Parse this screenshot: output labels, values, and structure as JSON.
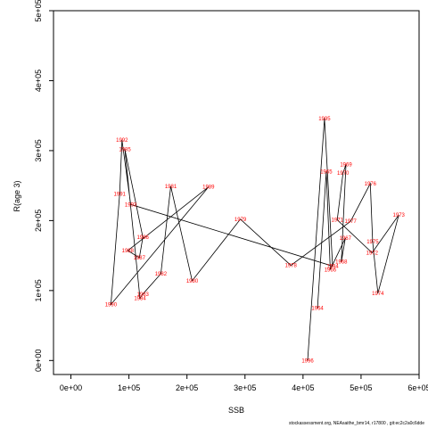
{
  "chart_data": {
    "type": "scatter",
    "connected": true,
    "xlabel": "SSB",
    "ylabel": "R(age 3)",
    "xlim": [
      -30000,
      600000
    ],
    "ylim": [
      -20000,
      500000
    ],
    "xticks": [
      0,
      100000,
      200000,
      300000,
      400000,
      500000,
      600000
    ],
    "xtick_labels": [
      "0e+00",
      "1e+05",
      "2e+05",
      "3e+05",
      "4e+05",
      "5e+05",
      "6e+05"
    ],
    "yticks": [
      0,
      100000,
      200000,
      300000,
      400000,
      500000
    ],
    "ytick_labels": [
      "0e+00",
      "1e+05",
      "2e+05",
      "3e+05",
      "4e+05",
      "5e+05"
    ],
    "grid": false,
    "line_color": "#000000",
    "label_color": "#ff0000",
    "points": [
      {
        "year": "1964",
        "ssb": 425000,
        "rec": 75000
      },
      {
        "year": "1965",
        "ssb": 440000,
        "rec": 270000
      },
      {
        "year": "1966",
        "ssb": 447000,
        "rec": 130000
      },
      {
        "year": "1967",
        "ssb": 473000,
        "rec": 175000
      },
      {
        "year": "1968",
        "ssb": 466000,
        "rec": 141000
      },
      {
        "year": "1969",
        "ssb": 474000,
        "rec": 280000
      },
      {
        "year": "1970",
        "ssb": 469000,
        "rec": 268000
      },
      {
        "year": "1971",
        "ssb": 459000,
        "rec": 201000
      },
      {
        "year": "1972",
        "ssb": 519000,
        "rec": 154000
      },
      {
        "year": "1973",
        "ssb": 565000,
        "rec": 208000
      },
      {
        "year": "1974",
        "ssb": 529000,
        "rec": 96000
      },
      {
        "year": "1975",
        "ssb": 520000,
        "rec": 170000
      },
      {
        "year": "1976",
        "ssb": 516000,
        "rec": 253000
      },
      {
        "year": "1977",
        "ssb": 482000,
        "rec": 199000
      },
      {
        "year": "1978",
        "ssb": 379000,
        "rec": 136000
      },
      {
        "year": "1979",
        "ssb": 292000,
        "rec": 202000
      },
      {
        "year": "1980",
        "ssb": 209000,
        "rec": 114000
      },
      {
        "year": "1981",
        "ssb": 172000,
        "rec": 249000
      },
      {
        "year": "1982",
        "ssb": 155000,
        "rec": 124000
      },
      {
        "year": "1983",
        "ssb": 124000,
        "rec": 95000
      },
      {
        "year": "1984",
        "ssb": 119000,
        "rec": 89000
      },
      {
        "year": "1985",
        "ssb": 93000,
        "rec": 302000
      },
      {
        "year": "1986",
        "ssb": 124000,
        "rec": 176000
      },
      {
        "year": "1987",
        "ssb": 118000,
        "rec": 147000
      },
      {
        "year": "1988",
        "ssb": 98000,
        "rec": 157000
      },
      {
        "year": "1989",
        "ssb": 237000,
        "rec": 248000
      },
      {
        "year": "1990",
        "ssb": 69000,
        "rec": 80000
      },
      {
        "year": "1991",
        "ssb": 84000,
        "rec": 238000
      },
      {
        "year": "1992",
        "ssb": 88000,
        "rec": 315000
      },
      {
        "year": "1993",
        "ssb": 103000,
        "rec": 223000
      },
      {
        "year": "1994",
        "ssb": 451000,
        "rec": 135000
      },
      {
        "year": "1995",
        "ssb": 437000,
        "rec": 346000
      },
      {
        "year": "1996",
        "ssb": 408000,
        "rec": 0
      }
    ]
  },
  "footer_text": "stockassessment.org, NEAsaithe_bmr14, r17800 , git:ec2c2a0c6dde"
}
